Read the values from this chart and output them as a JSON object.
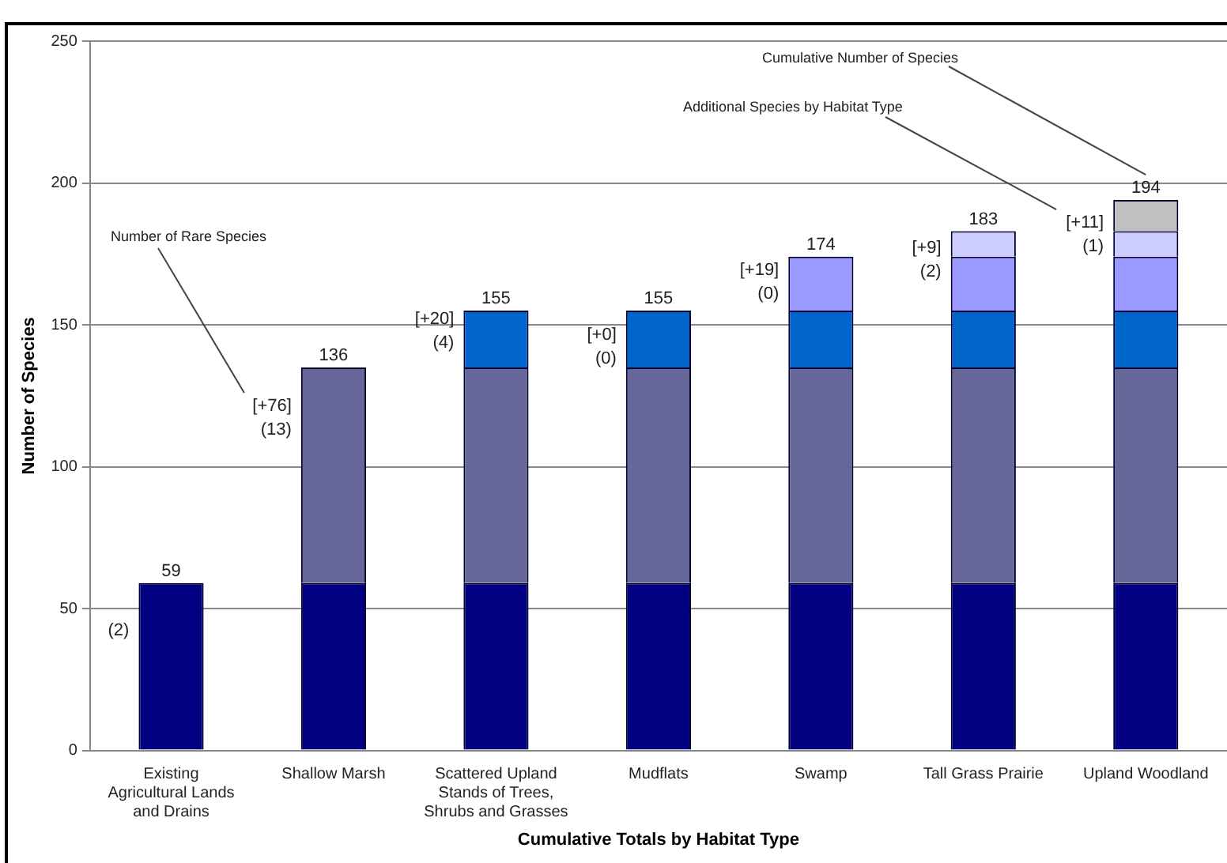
{
  "chart_data": {
    "type": "bar",
    "stacked": true,
    "xlabel": "Cumulative Totals by Habitat Type",
    "ylabel": "Number of Species",
    "categories": [
      "Existing Agricultural Lands and Drains",
      "Shallow Marsh",
      "Scattered Upland Stands of Trees, Shrubs and Grasses",
      "Mudflats",
      "Swamp",
      "Tall Grass Prairie",
      "Upland Woodland"
    ],
    "series": [
      {
        "color": "#000080",
        "values": [
          59,
          59,
          59,
          59,
          59,
          59,
          59
        ]
      },
      {
        "color": "#666699",
        "values": [
          null,
          76,
          76,
          76,
          76,
          76,
          76
        ]
      },
      {
        "color": "#0066cc",
        "values": [
          null,
          null,
          20,
          20,
          20,
          20,
          20
        ]
      },
      {
        "color": "#9999ff",
        "values": [
          null,
          null,
          null,
          null,
          19,
          19,
          19
        ]
      },
      {
        "color": "#ccccff",
        "values": [
          null,
          null,
          null,
          null,
          null,
          9,
          9
        ]
      },
      {
        "color": "#c0c0c0",
        "values": [
          null,
          null,
          null,
          null,
          null,
          null,
          11
        ]
      }
    ],
    "totals": [
      "59",
      "136",
      "155",
      "155",
      "174",
      "183",
      "194"
    ],
    "ylim": [
      0,
      250
    ],
    "yticks": [
      0,
      50,
      100,
      150,
      200,
      250
    ],
    "grid": "y",
    "annotations": [
      "(2)",
      "[+76]\n(13)",
      "[+20]\n(4)",
      "[+0]\n(0)",
      "[+19]\n(0)",
      "[+9]\n(2)",
      "[+11]\n(1)",
      "Number of Rare Species",
      "Additional Species by Habitat Type",
      "Cumulative Number of Species"
    ]
  }
}
